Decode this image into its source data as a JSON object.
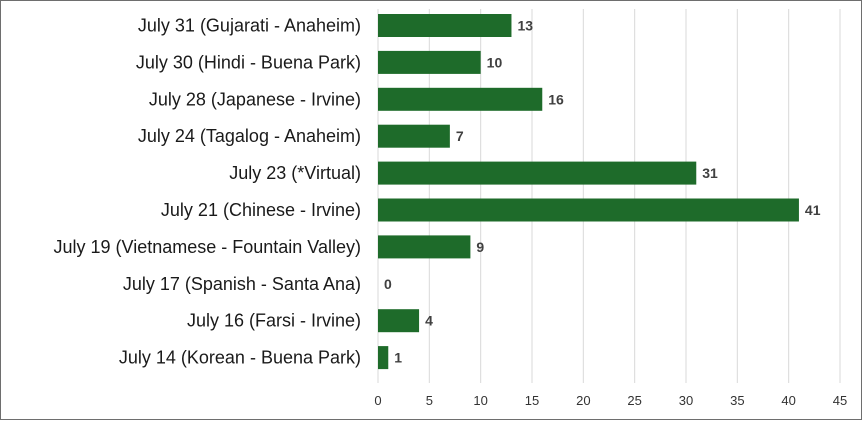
{
  "chart_data": {
    "type": "bar",
    "orientation": "horizontal",
    "categories": [
      "July 31 (Gujarati - Anaheim)",
      "July 30 (Hindi - Buena Park)",
      "July 28 (Japanese - Irvine)",
      "July 24 (Tagalog - Anaheim)",
      "July 23 (*Virtual)",
      "July 21 (Chinese - Irvine)",
      "July 19 (Vietnamese - Fountain Valley)",
      "July 17 (Spanish - Santa Ana)",
      "July 16 (Farsi - Irvine)",
      "July 14 (Korean - Buena Park)"
    ],
    "values": [
      13,
      10,
      16,
      7,
      31,
      41,
      9,
      0,
      4,
      1
    ],
    "xlim": [
      0,
      45
    ],
    "xticks": [
      0,
      5,
      10,
      15,
      20,
      25,
      30,
      35,
      40,
      45
    ],
    "grid": true,
    "data_labels": true,
    "bar_color": "#1e6b2a",
    "title": "",
    "xlabel": "",
    "ylabel": ""
  }
}
